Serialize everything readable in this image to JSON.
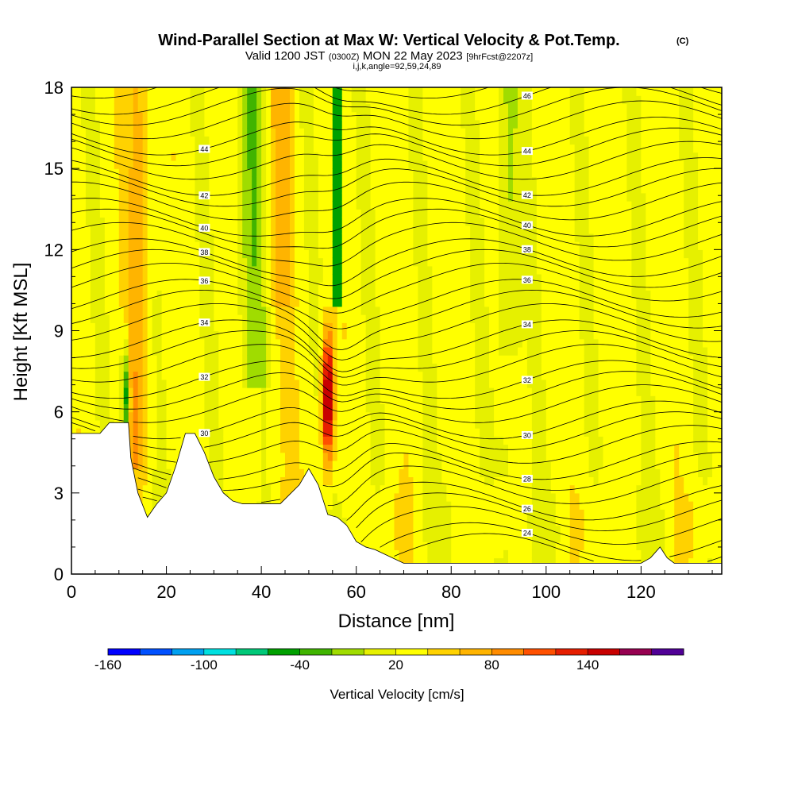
{
  "title": {
    "main": "Wind-Parallel Section at Max W: Vertical Velocity & Pot.Temp.",
    "copyright": "(C)",
    "valid_prefix": "Valid 1200 JST",
    "valid_utc": "(0300Z)",
    "valid_date": "MON 22 May 2023",
    "forecast": "[9hrFcst@2207z]",
    "indices": "i,j,k,angle=92,59,24,89"
  },
  "chart_data": {
    "type": "heatmap",
    "xlabel": "Distance [nm]",
    "ylabel": "Height [Kft MSL]",
    "xlim": [
      0,
      137
    ],
    "ylim": [
      0,
      18
    ],
    "x_ticks": [
      "0",
      "20",
      "40",
      "60",
      "80",
      "100",
      "120"
    ],
    "y_ticks": [
      "0",
      "3",
      "6",
      "9",
      "12",
      "15",
      "18"
    ],
    "colorbar": {
      "label": "Vertical Velocity [cm/s]",
      "tick_labels": [
        "-160",
        "-100",
        "-40",
        "20",
        "80",
        "140"
      ],
      "colors": [
        "#0000ff",
        "#0050ff",
        "#00a0f0",
        "#00e0e0",
        "#00c878",
        "#00a000",
        "#40b400",
        "#a0dc00",
        "#e6f000",
        "#ffff00",
        "#ffd200",
        "#ffb400",
        "#ff8c00",
        "#ff5000",
        "#e61e00",
        "#c80000",
        "#960050",
        "#500096"
      ]
    },
    "theta_contours": [
      "24",
      "26",
      "28",
      "30",
      "32",
      "34",
      "36",
      "38",
      "40",
      "42",
      "44",
      "46"
    ],
    "terrain_heights_kft": [
      [
        0,
        5.2
      ],
      [
        6,
        5.2
      ],
      [
        8,
        5.6
      ],
      [
        12,
        5.6
      ],
      [
        12.5,
        4.3
      ],
      [
        14,
        3.0
      ],
      [
        16,
        2.1
      ],
      [
        18,
        2.6
      ],
      [
        20,
        3.0
      ],
      [
        22,
        4.0
      ],
      [
        24,
        5.2
      ],
      [
        26,
        5.2
      ],
      [
        28,
        4.5
      ],
      [
        30,
        3.6
      ],
      [
        32,
        3.0
      ],
      [
        34,
        2.7
      ],
      [
        36,
        2.6
      ],
      [
        40,
        2.6
      ],
      [
        44,
        2.6
      ],
      [
        48,
        3.3
      ],
      [
        50,
        3.9
      ],
      [
        52,
        3.3
      ],
      [
        54,
        2.2
      ],
      [
        56,
        2.1
      ],
      [
        58,
        1.8
      ],
      [
        60,
        1.2
      ],
      [
        62,
        1.0
      ],
      [
        64,
        0.9
      ],
      [
        70,
        0.4
      ],
      [
        75,
        0.4
      ],
      [
        100,
        0.4
      ],
      [
        120,
        0.4
      ],
      [
        122,
        0.6
      ],
      [
        124,
        1.0
      ],
      [
        125.5,
        0.6
      ],
      [
        127,
        0.4
      ],
      [
        137,
        0.4
      ]
    ]
  }
}
